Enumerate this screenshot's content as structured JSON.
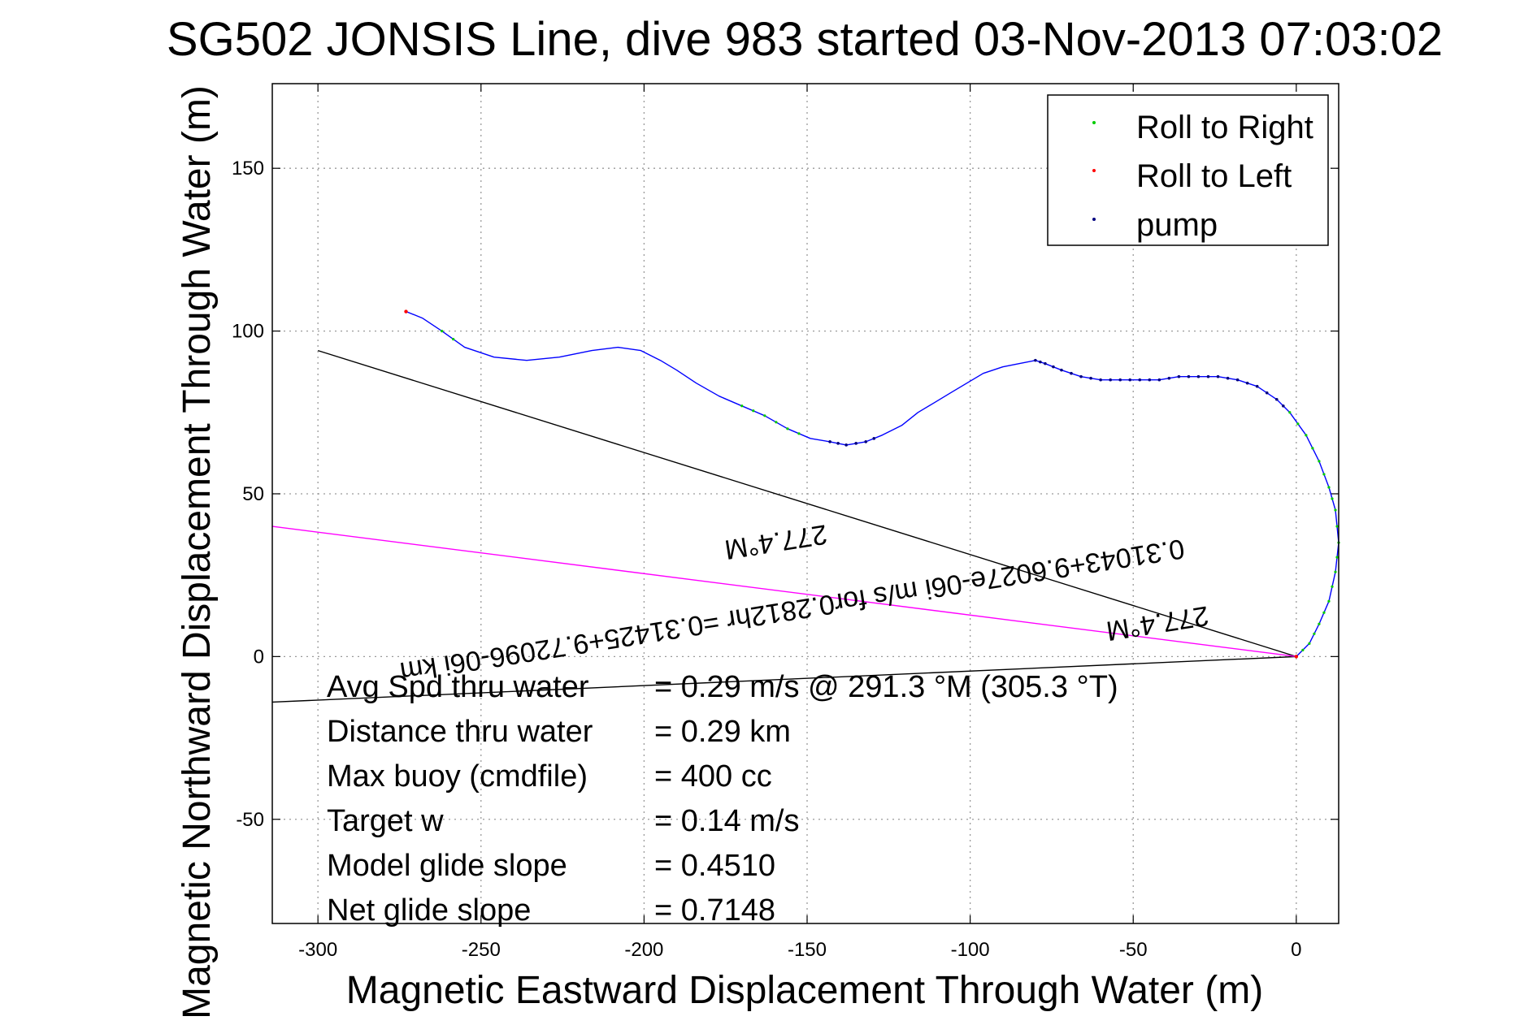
{
  "chart_data": {
    "type": "line",
    "title": "SG502 JONSIS Line, dive 983 started 03-Nov-2013 07:03:02",
    "xlabel": "Magnetic Eastward Displacement Through Water (m)",
    "ylabel": "Magnetic Northward Displacement Through Water (m)",
    "xlim": [
      -314,
      13
    ],
    "ylim": [
      -82,
      176
    ],
    "xticks": [
      -300,
      -250,
      -200,
      -150,
      -100,
      -50,
      0
    ],
    "yticks": [
      -50,
      0,
      50,
      100,
      150
    ],
    "grid": true,
    "legend_position": "top-right",
    "legend": [
      {
        "label": "Roll to Right",
        "color": "#00cc00"
      },
      {
        "label": "Roll to Left",
        "color": "#ff0000"
      },
      {
        "label": "pump",
        "color": "#00007f"
      }
    ],
    "track": {
      "color": "#0000ff",
      "x": [
        -273,
        -268,
        -262,
        -255,
        -246,
        -236,
        -226,
        -216,
        -208,
        -201,
        -195,
        -190,
        -184,
        -177,
        -170,
        -163,
        -156,
        -149,
        -143,
        -138,
        -132,
        -127,
        -121,
        -116,
        -111,
        -106,
        -101,
        -96,
        -90,
        -85,
        -80,
        -77,
        -72,
        -66,
        -60,
        -54,
        -48,
        -42,
        -36,
        -30,
        -24,
        -18,
        -12,
        -6,
        -2,
        3,
        7,
        10,
        12,
        13,
        12,
        10,
        7,
        4,
        0
      ],
      "y": [
        106,
        104,
        100,
        95,
        92,
        91,
        92,
        94,
        95,
        94,
        91,
        88,
        84,
        80,
        77,
        74,
        70,
        67,
        66,
        65,
        66,
        68,
        71,
        75,
        78,
        81,
        84,
        87,
        89,
        90,
        91,
        90,
        88,
        86,
        85,
        85,
        85,
        85,
        86,
        86,
        86,
        85,
        83,
        79,
        75,
        68,
        60,
        52,
        45,
        35,
        26,
        17,
        10,
        4,
        0
      ]
    },
    "pump_segments": [
      [
        30,
        44
      ],
      [
        18,
        21
      ]
    ],
    "roll_right_segments": [
      [
        14,
        17
      ],
      [
        44,
        54
      ],
      [
        2,
        3
      ]
    ],
    "roll_left_points": [
      [
        -273,
        106
      ],
      [
        0,
        0
      ]
    ],
    "heading_lines": [
      {
        "color": "#000000",
        "x": [
          0,
          -300
        ],
        "y": [
          0,
          94
        ]
      },
      {
        "color": "#000000",
        "x": [
          0,
          -314
        ],
        "y": [
          0,
          -14
        ]
      },
      {
        "color": "#ff00ff",
        "x": [
          0,
          -314
        ],
        "y": [
          0,
          40
        ]
      }
    ],
    "rotated_labels": [
      {
        "text": "277.4°M",
        "x": -160,
        "y": 38,
        "angle": 171
      },
      {
        "text": "277.4°M",
        "x": -43,
        "y": 13,
        "angle": 171
      },
      {
        "text": "0.31043+9.6027e-06i m/s for0.2812hr =0.31425+9.72096-06i km",
        "x": -155,
        "y": 17,
        "angle": 171
      }
    ],
    "annotations": [
      {
        "label": "Avg Spd thru water",
        "value": "=  0.29 m/s @ 291.3 °M (305.3 °T)"
      },
      {
        "label": "Distance thru water",
        "value": "=  0.29 km"
      },
      {
        "label": "Max buoy (cmdfile)",
        "value": "= 400 cc"
      },
      {
        "label": "Target w",
        "value": "= 0.14 m/s"
      },
      {
        "label": "Model glide slope",
        "value": "= 0.4510"
      },
      {
        "label": "Net glide slope",
        "value": "= 0.7148"
      }
    ]
  }
}
